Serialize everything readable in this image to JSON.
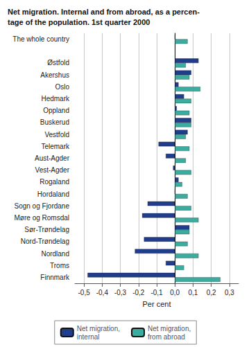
{
  "chart_data": {
    "type": "bar",
    "orientation": "horizontal",
    "title": "Net migration. Internal and from abroad, as a percen-\ntage of the population. 1st quarter 2000",
    "x_label": "Per cent",
    "categories": [
      "The whole country",
      null,
      "Østfold",
      "Akershus",
      "Oslo",
      "Hedmark",
      "Oppland",
      "Buskerud",
      "Vestfold",
      "Telemark",
      "Aust-Agder",
      "Vest-Agder",
      "Rogaland",
      "Hordaland",
      "Sogn og Fjordane",
      "Møre og Romsdal",
      "Sør-Trøndelag",
      "Nord-Trøndelag",
      "Nordland",
      "Troms",
      "Finnmark"
    ],
    "series": [
      {
        "name": "Net migration,\ninternal",
        "color": "#1f3d8c",
        "values": [
          0.0,
          null,
          0.13,
          0.09,
          0.02,
          0.05,
          0.01,
          0.09,
          0.07,
          -0.09,
          -0.05,
          -0.01,
          0.02,
          0.0,
          -0.15,
          -0.18,
          0.08,
          -0.17,
          -0.22,
          -0.05,
          -0.48
        ]
      },
      {
        "name": "Net migration,\nfrom abroad",
        "color": "#3aada0",
        "values": [
          0.07,
          null,
          0.06,
          0.08,
          0.14,
          0.09,
          0.08,
          0.09,
          0.06,
          0.08,
          0.06,
          0.09,
          0.04,
          0.07,
          0.09,
          0.13,
          0.08,
          0.07,
          0.13,
          0.05,
          0.25
        ]
      }
    ],
    "xlim": [
      -0.55,
      0.35
    ],
    "xticks": [
      {
        "value": -0.5,
        "label": "-0,5"
      },
      {
        "value": -0.4,
        "label": "-0,4"
      },
      {
        "value": -0.3,
        "label": "-0,3"
      },
      {
        "value": -0.2,
        "label": "-0,2"
      },
      {
        "value": -0.1,
        "label": "-0,1"
      },
      {
        "value": 0.0,
        "label": "0,0"
      },
      {
        "value": 0.1,
        "label": "0,1"
      },
      {
        "value": 0.2,
        "label": "0,2"
      },
      {
        "value": 0.3,
        "label": "0,3"
      }
    ],
    "grid": true,
    "legend": "bottom"
  }
}
